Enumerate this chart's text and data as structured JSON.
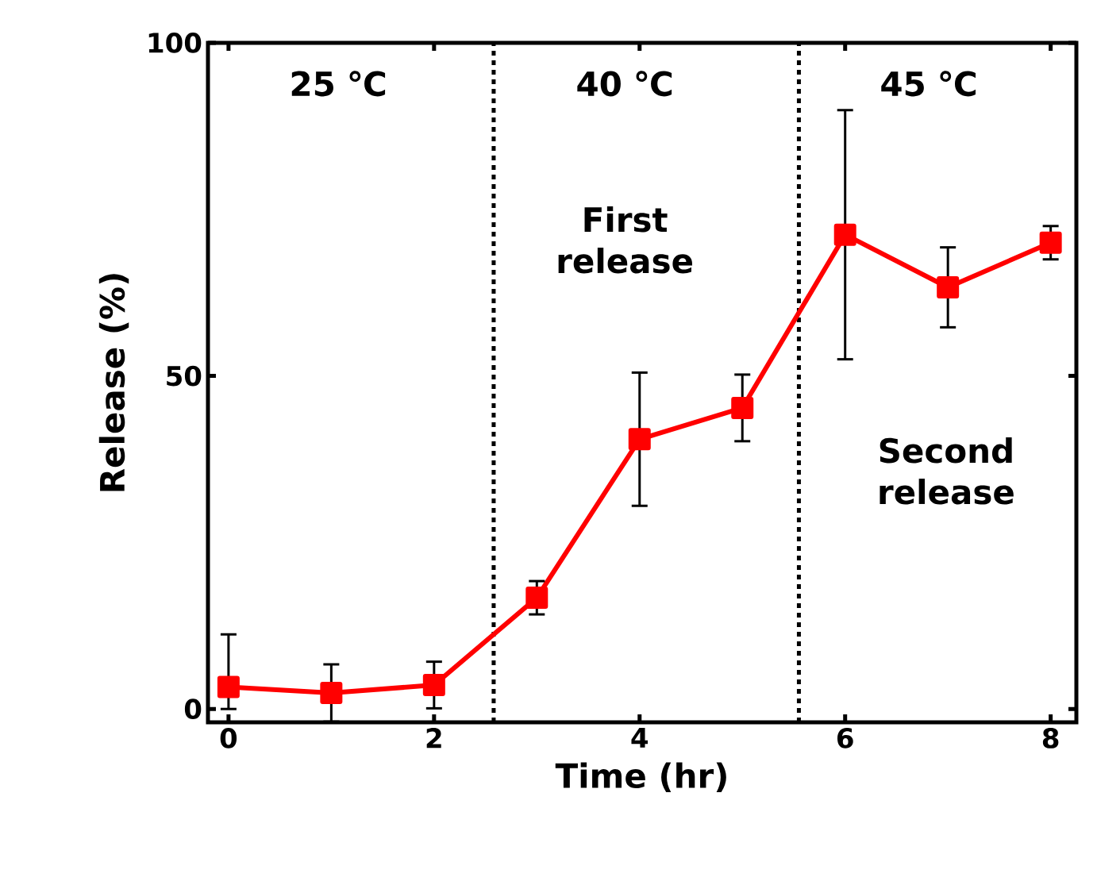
{
  "chart_data": {
    "type": "line",
    "xlabel": "Time (hr)",
    "ylabel": "Release (%)",
    "x": [
      0,
      1,
      2,
      3,
      4,
      5,
      6,
      7,
      8
    ],
    "series": [
      {
        "color": "#ff0000",
        "values": [
          3.3,
          2.4,
          3.6,
          16.7,
          40.5,
          45.2,
          71.2,
          63.3,
          70
        ],
        "errors": [
          [
            0,
            11.2
          ],
          4.3,
          3.5,
          2.5,
          10,
          5,
          18.7,
          6,
          2.5
        ]
      }
    ],
    "xlim": [
      -0.2,
      8.25
    ],
    "ylim": [
      -2,
      100
    ],
    "xticks": [
      0,
      2,
      4,
      6,
      8
    ],
    "yticks": [
      0,
      50,
      100
    ],
    "marker": "square",
    "line_style": "solid",
    "grid": false,
    "ref_lines": [
      {
        "axis": "x",
        "value": 2.58,
        "color": "#000000",
        "line_style": "dotted"
      },
      {
        "axis": "x",
        "value": 5.55,
        "color": "#000000",
        "line_style": "dotted"
      }
    ],
    "annotations": [
      "25 ℃",
      "40 ℃",
      "45 ℃",
      "First release",
      "Second release"
    ]
  }
}
